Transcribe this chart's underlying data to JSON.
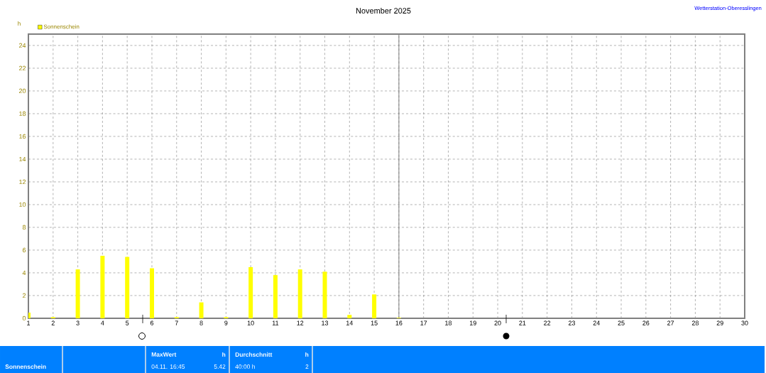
{
  "chart_data": {
    "type": "bar",
    "title": "November 2025",
    "ylabel": "h",
    "x": [
      1,
      2,
      3,
      4,
      5,
      6,
      7,
      8,
      9,
      10,
      11,
      12,
      13,
      14,
      15,
      16
    ],
    "series": [
      {
        "name": "Sonnenschein",
        "color": "#ffff00",
        "values": [
          0.5,
          0.1,
          4.3,
          5.5,
          5.4,
          4.4,
          0.1,
          1.4,
          0.1,
          4.5,
          3.8,
          4.3,
          4.1,
          0.3,
          2.1,
          0.05
        ]
      }
    ],
    "xlim": [
      1,
      30
    ],
    "xticks": [
      1,
      2,
      3,
      4,
      5,
      6,
      7,
      8,
      9,
      10,
      11,
      12,
      13,
      14,
      15,
      16,
      17,
      18,
      19,
      20,
      21,
      22,
      23,
      24,
      25,
      26,
      27,
      28,
      29,
      30
    ],
    "ylim": [
      0,
      25
    ],
    "yticks": [
      0,
      2,
      4,
      6,
      8,
      10,
      12,
      14,
      16,
      18,
      20,
      22,
      24
    ],
    "grid": true,
    "legend": "top left",
    "ref_lines": [
      {
        "axis": "x",
        "value": 16,
        "color": "#808080"
      }
    ],
    "annotations": [
      "Wetterstation-Oberesslingen",
      "Sonnenschein",
      "MaxWert",
      "h",
      "04.11.  16:45",
      "5.42",
      "Durchschnitt",
      "h",
      "40:00 h",
      "2"
    ]
  }
}
